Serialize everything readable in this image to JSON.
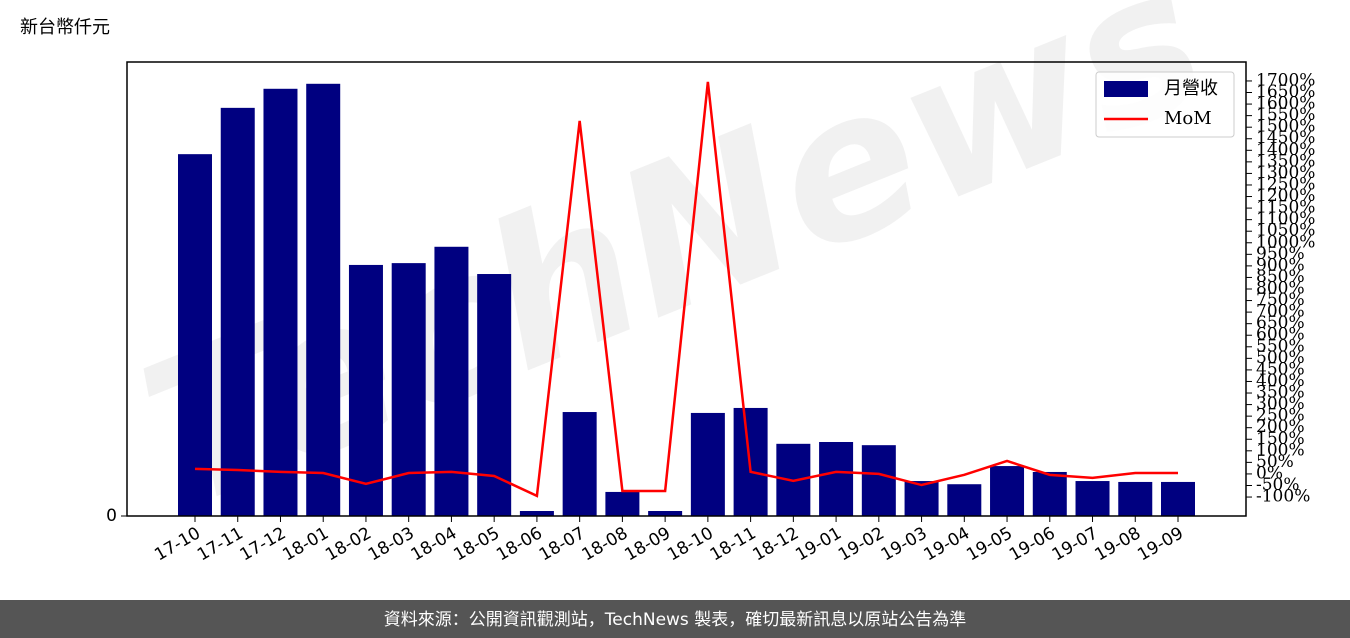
{
  "chart_data": {
    "type": "bar",
    "y_label": "新台幣仟元",
    "categories": [
      "17-10",
      "17-11",
      "17-12",
      "18-01",
      "18-02",
      "18-03",
      "18-04",
      "18-05",
      "18-06",
      "18-07",
      "18-08",
      "18-09",
      "18-10",
      "18-11",
      "18-12",
      "19-01",
      "19-02",
      "19-03",
      "19-04",
      "19-05",
      "19-06",
      "19-07",
      "19-08",
      "19-09"
    ],
    "series": [
      {
        "name": "月營收",
        "type": "bar",
        "color": "#000080",
        "values": [
          79.7,
          89.9,
          94.1,
          95.2,
          55.3,
          55.7,
          59.3,
          53.3,
          1.1,
          22.9,
          5.3,
          1.1,
          22.7,
          23.8,
          15.9,
          16.3,
          15.6,
          7.7,
          7.0,
          11.0,
          9.7,
          7.7,
          7.5,
          7.5
        ]
      },
      {
        "name": "MoM",
        "type": "line",
        "axis": "y2",
        "color": "#ff0000",
        "values": [
          22,
          17,
          9,
          4,
          -43,
          4,
          9,
          -9,
          -95,
          1527,
          -74,
          -74,
          1696,
          9,
          -30,
          9,
          0,
          -48,
          -4,
          56,
          -4,
          -17,
          4,
          4
        ]
      }
    ],
    "ylim": [
      0,
      100
    ],
    "yticks": [
      0
    ],
    "y2lim": [
      -182,
      1782
    ],
    "y2ticks": [
      {
        "value": -100,
        "label": "-100%"
      },
      {
        "value": -50,
        "label": "-50%"
      },
      {
        "value": 0,
        "label": "0%"
      },
      {
        "value": 50,
        "label": "50%"
      },
      {
        "value": 100,
        "label": "100%"
      },
      {
        "value": 150,
        "label": "150%"
      },
      {
        "value": 200,
        "label": "200%"
      },
      {
        "value": 250,
        "label": "250%"
      },
      {
        "value": 300,
        "label": "300%"
      },
      {
        "value": 350,
        "label": "350%"
      },
      {
        "value": 400,
        "label": "400%"
      },
      {
        "value": 450,
        "label": "450%"
      },
      {
        "value": 500,
        "label": "500%"
      },
      {
        "value": 550,
        "label": "550%"
      },
      {
        "value": 600,
        "label": "600%"
      },
      {
        "value": 650,
        "label": "650%"
      },
      {
        "value": 700,
        "label": "700%"
      },
      {
        "value": 750,
        "label": "750%"
      },
      {
        "value": 800,
        "label": "800%"
      },
      {
        "value": 850,
        "label": "850%"
      },
      {
        "value": 900,
        "label": "900%"
      },
      {
        "value": 950,
        "label": "950%"
      },
      {
        "value": 1000,
        "label": "1000%"
      },
      {
        "value": 1050,
        "label": "1050%"
      },
      {
        "value": 1100,
        "label": "1100%"
      },
      {
        "value": 1150,
        "label": "1150%"
      },
      {
        "value": 1200,
        "label": "1200%"
      },
      {
        "value": 1250,
        "label": "1250%"
      },
      {
        "value": 1300,
        "label": "1300%"
      },
      {
        "value": 1350,
        "label": "1350%"
      },
      {
        "value": 1400,
        "label": "1400%"
      },
      {
        "value": 1450,
        "label": "1450%"
      },
      {
        "value": 1500,
        "label": "1500%"
      },
      {
        "value": 1550,
        "label": "1550%"
      },
      {
        "value": 1600,
        "label": "1600%"
      },
      {
        "value": 1650,
        "label": "1650%"
      },
      {
        "value": 1700,
        "label": "1700%"
      }
    ],
    "legend": "upper right",
    "watermark": "TechNews",
    "source": "資料來源：公開資訊觀測站，TechNews 製表，確切最新訊息以原站公告為準"
  }
}
